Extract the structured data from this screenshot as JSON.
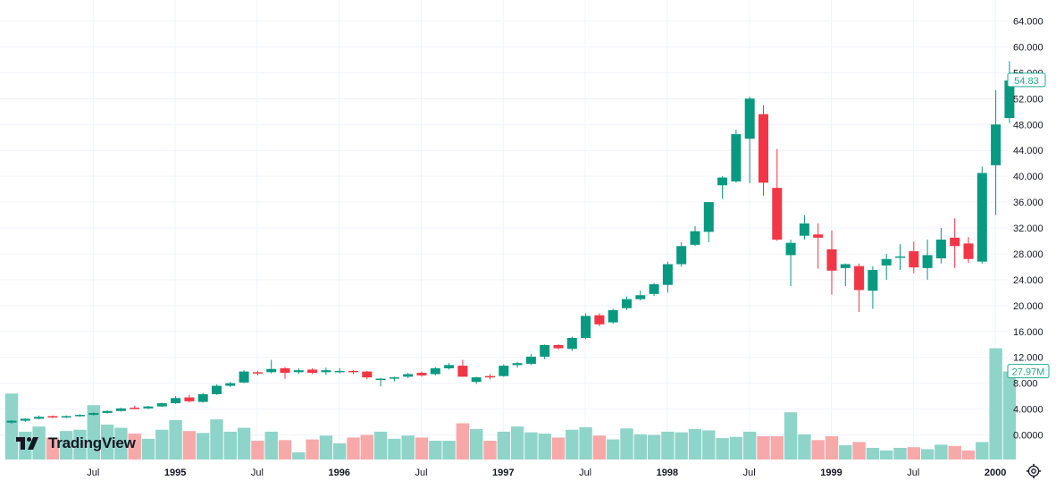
{
  "chart_data": {
    "type": "candlestick",
    "price_axis": {
      "min": -4,
      "max": 66,
      "ticks": [
        0,
        4,
        8,
        12,
        16,
        20,
        24,
        28,
        32,
        36,
        40,
        44,
        48,
        52,
        56,
        60,
        64
      ],
      "tick_labels": [
        "0.0000",
        "4.0000",
        "8.000",
        "12.000",
        "16.000",
        "20.000",
        "24.000",
        "28.000",
        "32.000",
        "36.000",
        "40.000",
        "44.000",
        "48.000",
        "52.000",
        "56.000",
        "60.000",
        "64.000"
      ],
      "current_price_label": "54.83",
      "current_price": 54.83,
      "current_price_color": "#22ab94"
    },
    "volume_overlay": {
      "current_volume_label": "27.97M",
      "current_volume_color": "#22ab94",
      "volume_in_price_units_max": 13.2
    },
    "time_axis": {
      "labels": [
        {
          "text": "Jul",
          "index": 6,
          "bold": false
        },
        {
          "text": "1995",
          "index": 12,
          "bold": true
        },
        {
          "text": "Jul",
          "index": 18,
          "bold": false
        },
        {
          "text": "1996",
          "index": 24,
          "bold": true
        },
        {
          "text": "Jul",
          "index": 30,
          "bold": false
        },
        {
          "text": "1997",
          "index": 36,
          "bold": true
        },
        {
          "text": "Jul",
          "index": 42,
          "bold": false
        },
        {
          "text": "1998",
          "index": 48,
          "bold": true
        },
        {
          "text": "Jul",
          "index": 54,
          "bold": false
        },
        {
          "text": "1999",
          "index": 60,
          "bold": true
        },
        {
          "text": "Jul",
          "index": 66,
          "bold": false
        },
        {
          "text": "2000",
          "index": 72,
          "bold": true
        }
      ]
    },
    "colors": {
      "up": "#089981",
      "down": "#f23645",
      "up_vol": "#8fd4c9",
      "down_vol": "#f7a9a9",
      "grid": "#f0f3fa"
    },
    "candles": [
      {
        "o": 1.9,
        "h": 2.3,
        "l": 1.7,
        "c": 2.2,
        "v": 6.2
      },
      {
        "o": 2.2,
        "h": 2.6,
        "l": 2.0,
        "c": 2.5,
        "v": 0.3
      },
      {
        "o": 2.5,
        "h": 3.0,
        "l": 2.4,
        "c": 2.8,
        "v": 1.1
      },
      {
        "o": 2.9,
        "h": 3.0,
        "l": 2.6,
        "c": 2.7,
        "v": -0.6
      },
      {
        "o": 2.7,
        "h": 3.0,
        "l": 2.6,
        "c": 2.9,
        "v": 0.4
      },
      {
        "o": 2.9,
        "h": 3.2,
        "l": 2.8,
        "c": 3.1,
        "v": 0.6
      },
      {
        "o": 3.1,
        "h": 3.5,
        "l": 3.0,
        "c": 3.4,
        "v": 4.4
      },
      {
        "o": 3.4,
        "h": 3.8,
        "l": 3.3,
        "c": 3.7,
        "v": 1.4
      },
      {
        "o": 3.7,
        "h": 4.2,
        "l": 3.6,
        "c": 4.1,
        "v": 0.9
      },
      {
        "o": 4.2,
        "h": 4.5,
        "l": 4.0,
        "c": 4.1,
        "v": 0.0
      },
      {
        "o": 4.1,
        "h": 4.5,
        "l": 4.0,
        "c": 4.4,
        "v": -0.8
      },
      {
        "o": 4.4,
        "h": 5.0,
        "l": 4.3,
        "c": 4.9,
        "v": 0.6
      },
      {
        "o": 4.9,
        "h": 6.0,
        "l": 4.8,
        "c": 5.7,
        "v": 2.1
      },
      {
        "o": 5.8,
        "h": 6.2,
        "l": 5.0,
        "c": 5.2,
        "v": 0.4
      },
      {
        "o": 5.1,
        "h": 6.5,
        "l": 5.0,
        "c": 6.3,
        "v": 0.1
      },
      {
        "o": 6.3,
        "h": 7.8,
        "l": 6.2,
        "c": 7.6,
        "v": 2.2
      },
      {
        "o": 7.6,
        "h": 8.2,
        "l": 7.4,
        "c": 8.0,
        "v": 0.3
      },
      {
        "o": 8.1,
        "h": 10.0,
        "l": 8.0,
        "c": 9.8,
        "v": 0.9
      },
      {
        "o": 9.7,
        "h": 9.9,
        "l": 9.2,
        "c": 9.6,
        "v": -1.1
      },
      {
        "o": 9.7,
        "h": 11.6,
        "l": 9.5,
        "c": 10.2,
        "v": 0.3
      },
      {
        "o": 10.3,
        "h": 10.5,
        "l": 8.7,
        "c": 9.6,
        "v": -1.0
      },
      {
        "o": 9.7,
        "h": 10.3,
        "l": 9.4,
        "c": 10.0,
        "v": -2.9
      },
      {
        "o": 10.1,
        "h": 10.3,
        "l": 9.4,
        "c": 9.6,
        "v": -0.9
      },
      {
        "o": 9.7,
        "h": 10.4,
        "l": 9.3,
        "c": 10.0,
        "v": -0.3
      },
      {
        "o": 9.8,
        "h": 10.3,
        "l": 9.5,
        "c": 9.9,
        "v": -1.5
      },
      {
        "o": 9.9,
        "h": 10.0,
        "l": 9.4,
        "c": 9.8,
        "v": -0.6
      },
      {
        "o": 9.8,
        "h": 9.9,
        "l": 8.6,
        "c": 8.9,
        "v": -0.2
      },
      {
        "o": 8.5,
        "h": 8.8,
        "l": 7.5,
        "c": 8.7,
        "v": 0.3
      },
      {
        "o": 8.7,
        "h": 9.0,
        "l": 8.3,
        "c": 8.9,
        "v": -0.8
      },
      {
        "o": 9.0,
        "h": 9.6,
        "l": 8.8,
        "c": 9.4,
        "v": -0.3
      },
      {
        "o": 9.6,
        "h": 9.8,
        "l": 9.0,
        "c": 9.2,
        "v": -0.6
      },
      {
        "o": 9.4,
        "h": 10.5,
        "l": 9.2,
        "c": 10.3,
        "v": -1.1
      },
      {
        "o": 10.3,
        "h": 11.1,
        "l": 10.1,
        "c": 10.8,
        "v": -1.1
      },
      {
        "o": 10.7,
        "h": 11.6,
        "l": 9.0,
        "c": 9.0,
        "v": 1.6
      },
      {
        "o": 8.2,
        "h": 9.0,
        "l": 7.9,
        "c": 8.9,
        "v": 0.7
      },
      {
        "o": 9.1,
        "h": 9.4,
        "l": 8.6,
        "c": 8.9,
        "v": -1.1
      },
      {
        "o": 9.1,
        "h": 10.9,
        "l": 9.0,
        "c": 10.7,
        "v": 0.3
      },
      {
        "o": 10.8,
        "h": 11.3,
        "l": 10.4,
        "c": 11.1,
        "v": 1.1
      },
      {
        "o": 11.0,
        "h": 12.5,
        "l": 10.8,
        "c": 12.1,
        "v": 0.2
      },
      {
        "o": 12.1,
        "h": 14.0,
        "l": 11.7,
        "c": 13.9,
        "v": 0.0
      },
      {
        "o": 13.9,
        "h": 14.0,
        "l": 13.2,
        "c": 13.4,
        "v": -0.6
      },
      {
        "o": 13.3,
        "h": 15.2,
        "l": 13.0,
        "c": 15.0,
        "v": 0.6
      },
      {
        "o": 15.0,
        "h": 18.8,
        "l": 14.8,
        "c": 18.4,
        "v": 1.0
      },
      {
        "o": 18.5,
        "h": 18.8,
        "l": 16.8,
        "c": 17.1,
        "v": -0.3
      },
      {
        "o": 17.4,
        "h": 19.5,
        "l": 17.2,
        "c": 19.3,
        "v": -0.9
      },
      {
        "o": 19.6,
        "h": 21.4,
        "l": 19.3,
        "c": 21.0,
        "v": 0.8
      },
      {
        "o": 21.0,
        "h": 22.3,
        "l": 20.8,
        "c": 21.6,
        "v": -0.1
      },
      {
        "o": 21.8,
        "h": 23.5,
        "l": 21.5,
        "c": 23.3,
        "v": -0.2
      },
      {
        "o": 23.2,
        "h": 26.8,
        "l": 22.0,
        "c": 26.4,
        "v": 0.3
      },
      {
        "o": 26.4,
        "h": 29.8,
        "l": 26.0,
        "c": 29.2,
        "v": 0.2
      },
      {
        "o": 29.4,
        "h": 32.3,
        "l": 29.2,
        "c": 31.5,
        "v": 0.7
      },
      {
        "o": 31.4,
        "h": 36.0,
        "l": 29.8,
        "c": 36.0,
        "v": 0.5
      },
      {
        "o": 38.6,
        "h": 40.0,
        "l": 36.5,
        "c": 39.8,
        "v": -0.7
      },
      {
        "o": 39.2,
        "h": 47.2,
        "l": 39.0,
        "c": 46.5,
        "v": -0.5
      },
      {
        "o": 45.8,
        "h": 52.3,
        "l": 38.9,
        "c": 52.0,
        "v": 0.3
      },
      {
        "o": 49.6,
        "h": 51.0,
        "l": 37.0,
        "c": 39.0,
        "v": -0.4
      },
      {
        "o": 38.2,
        "h": 44.2,
        "l": 30.0,
        "c": 30.2,
        "v": -0.4
      },
      {
        "o": 27.8,
        "h": 30.2,
        "l": 23.0,
        "c": 29.7,
        "v": 3.3
      },
      {
        "o": 30.8,
        "h": 34.0,
        "l": 30.2,
        "c": 32.7,
        "v": -0.1
      },
      {
        "o": 31.0,
        "h": 32.7,
        "l": 25.7,
        "c": 30.5,
        "v": -1.0
      },
      {
        "o": 28.7,
        "h": 31.6,
        "l": 21.7,
        "c": 25.4,
        "v": -0.4
      },
      {
        "o": 25.8,
        "h": 26.5,
        "l": 23.0,
        "c": 26.4,
        "v": -1.8
      },
      {
        "o": 26.1,
        "h": 26.5,
        "l": 19.0,
        "c": 22.4,
        "v": -1.3
      },
      {
        "o": 22.3,
        "h": 26.1,
        "l": 19.5,
        "c": 25.5,
        "v": -2.2
      },
      {
        "o": 26.2,
        "h": 28.0,
        "l": 24.0,
        "c": 27.2,
        "v": -2.6
      },
      {
        "o": 27.4,
        "h": 29.5,
        "l": 25.5,
        "c": 27.6,
        "v": -2.2
      },
      {
        "o": 28.4,
        "h": 29.9,
        "l": 25.0,
        "c": 25.9,
        "v": -2.1
      },
      {
        "o": 25.8,
        "h": 30.2,
        "l": 24.0,
        "c": 27.8,
        "v": -2.4
      },
      {
        "o": 27.3,
        "h": 32.0,
        "l": 26.5,
        "c": 30.2,
        "v": -1.7
      },
      {
        "o": 30.5,
        "h": 33.5,
        "l": 25.8,
        "c": 29.2,
        "v": -1.9
      },
      {
        "o": 29.6,
        "h": 30.6,
        "l": 26.6,
        "c": 27.2,
        "v": -2.6
      },
      {
        "o": 26.8,
        "h": 41.5,
        "l": 26.5,
        "c": 40.5,
        "v": -1.3
      },
      {
        "o": 41.7,
        "h": 53.3,
        "l": 34.0,
        "c": 48.0,
        "v": 13.2
      },
      {
        "o": 49.0,
        "h": 57.8,
        "l": 48.2,
        "c": 54.8,
        "v": 9.6
      }
    ]
  },
  "branding": {
    "logo_text": "TradingView"
  },
  "icons": {
    "settings": "gear-icon",
    "logo": "tradingview-logo-icon"
  }
}
